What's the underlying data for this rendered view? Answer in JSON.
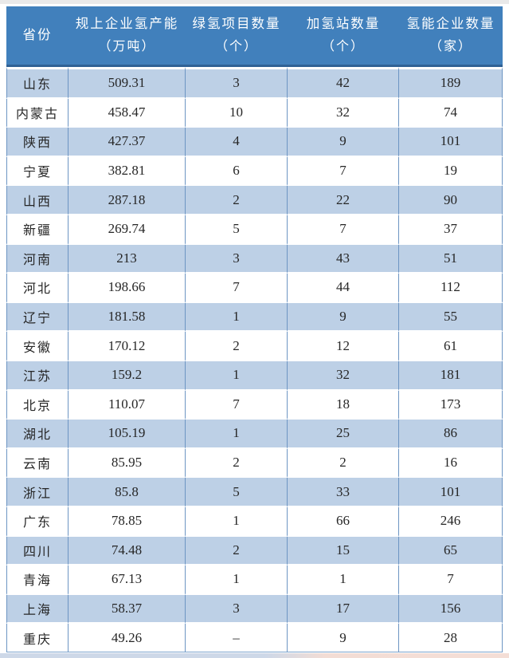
{
  "colors": {
    "header_bg": "#4180bc",
    "header_bottom_edge": "#2f6195",
    "header_text": "#ffffff",
    "row_alt_bg": "#bdd0e6",
    "row_bg": "#ffffff",
    "grid_line": "#6d95c3",
    "body_text": "#262626",
    "top_edge": "#e9e9e9",
    "bottom_edge_left": "#cdd8e8",
    "bottom_edge_right": "#f4ded6"
  },
  "chart_data": {
    "type": "table",
    "columns": [
      {
        "title": "省份",
        "unit": ""
      },
      {
        "title": "规上企业氢产能",
        "unit": "（万吨）"
      },
      {
        "title": "绿氢项目数量",
        "unit": "（个）"
      },
      {
        "title": "加氢站数量",
        "unit": "（个）"
      },
      {
        "title": "氢能企业数量",
        "unit": "（家）"
      }
    ],
    "rows": [
      [
        "山东",
        "509.31",
        "3",
        "42",
        "189"
      ],
      [
        "内蒙古",
        "458.47",
        "10",
        "32",
        "74"
      ],
      [
        "陕西",
        "427.37",
        "4",
        "9",
        "101"
      ],
      [
        "宁夏",
        "382.81",
        "6",
        "7",
        "19"
      ],
      [
        "山西",
        "287.18",
        "2",
        "22",
        "90"
      ],
      [
        "新疆",
        "269.74",
        "5",
        "7",
        "37"
      ],
      [
        "河南",
        "213",
        "3",
        "43",
        "51"
      ],
      [
        "河北",
        "198.66",
        "7",
        "44",
        "112"
      ],
      [
        "辽宁",
        "181.58",
        "1",
        "9",
        "55"
      ],
      [
        "安徽",
        "170.12",
        "2",
        "12",
        "61"
      ],
      [
        "江苏",
        "159.2",
        "1",
        "32",
        "181"
      ],
      [
        "北京",
        "110.07",
        "7",
        "18",
        "173"
      ],
      [
        "湖北",
        "105.19",
        "1",
        "25",
        "86"
      ],
      [
        "云南",
        "85.95",
        "2",
        "2",
        "16"
      ],
      [
        "浙江",
        "85.8",
        "5",
        "33",
        "101"
      ],
      [
        "广东",
        "78.85",
        "1",
        "66",
        "246"
      ],
      [
        "四川",
        "74.48",
        "2",
        "15",
        "65"
      ],
      [
        "青海",
        "67.13",
        "1",
        "1",
        "7"
      ],
      [
        "上海",
        "58.37",
        "3",
        "17",
        "156"
      ],
      [
        "重庆",
        "49.26",
        "–",
        "9",
        "28"
      ]
    ]
  }
}
